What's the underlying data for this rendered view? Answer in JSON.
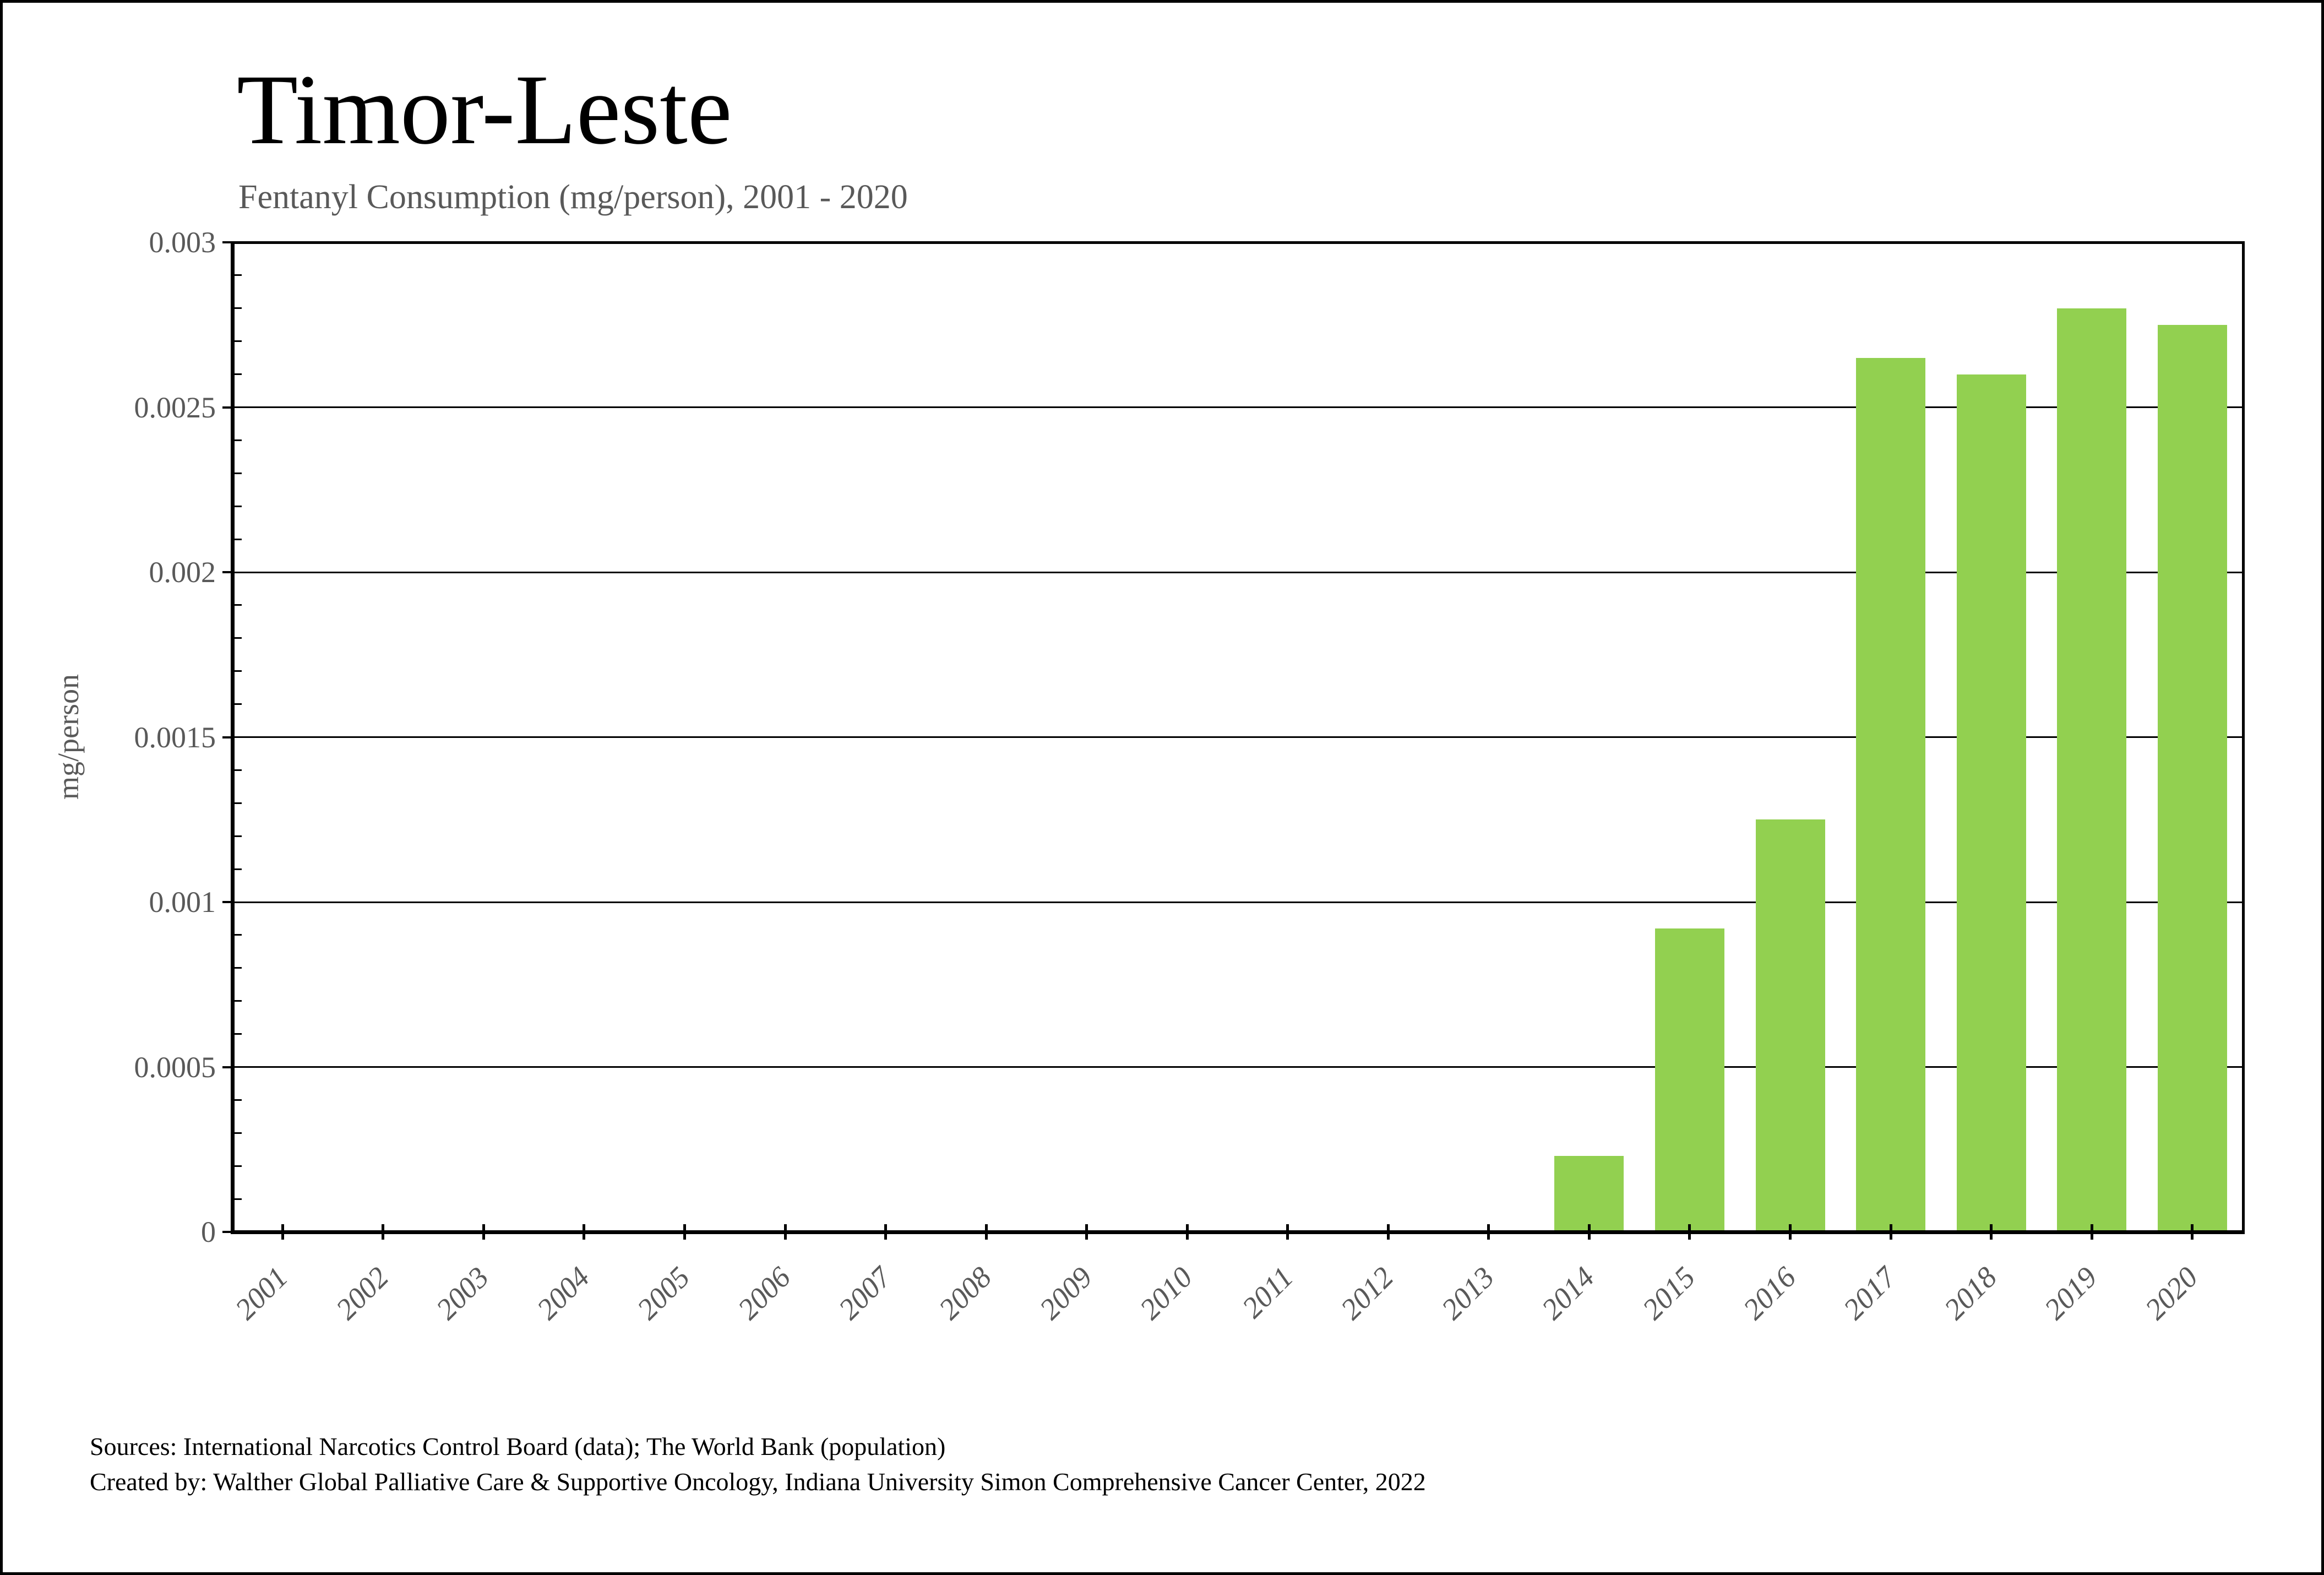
{
  "header": {
    "title": "Timor-Leste",
    "subtitle": "Fentanyl Consumption (mg/person), 2001 - 2020"
  },
  "chart_data": {
    "type": "bar",
    "title": "Timor-Leste",
    "subtitle": "Fentanyl Consumption (mg/person), 2001 - 2020",
    "xlabel": "",
    "ylabel": "mg/person",
    "categories": [
      "2001",
      "2002",
      "2003",
      "2004",
      "2005",
      "2006",
      "2007",
      "2008",
      "2009",
      "2010",
      "2011",
      "2012",
      "2013",
      "2014",
      "2015",
      "2016",
      "2017",
      "2018",
      "2019",
      "2020"
    ],
    "values": [
      0,
      0,
      0,
      0,
      0,
      0,
      0,
      0,
      0,
      0,
      0,
      0,
      0,
      0.00023,
      0.00092,
      0.00125,
      0.00265,
      0.0026,
      0.0028,
      0.00275
    ],
    "ylim": [
      0,
      0.003
    ],
    "ytick_values": [
      0,
      0.0005,
      0.001,
      0.0015,
      0.002,
      0.0025,
      0.003
    ],
    "ytick_labels": [
      "0",
      "0.0005",
      "0.001",
      "0.0015",
      "0.002",
      "0.0025",
      "0.003"
    ],
    "y_minor_step": 0.0001,
    "grid": "horizontal-major-lines",
    "legend": "none",
    "bar_color": "#92D050",
    "axis_color": "#000000",
    "tick_label_color": "#595959",
    "title_color": "#000000",
    "subtitle_color": "#595959"
  },
  "footer": {
    "sources_line": "Sources: International Narcotics Control Board (data); The World Bank (population)",
    "created_line": "Created by: Walther Global Palliative Care & Supportive Oncology, Indiana University Simon Comprehensive Cancer Center, 2022"
  }
}
